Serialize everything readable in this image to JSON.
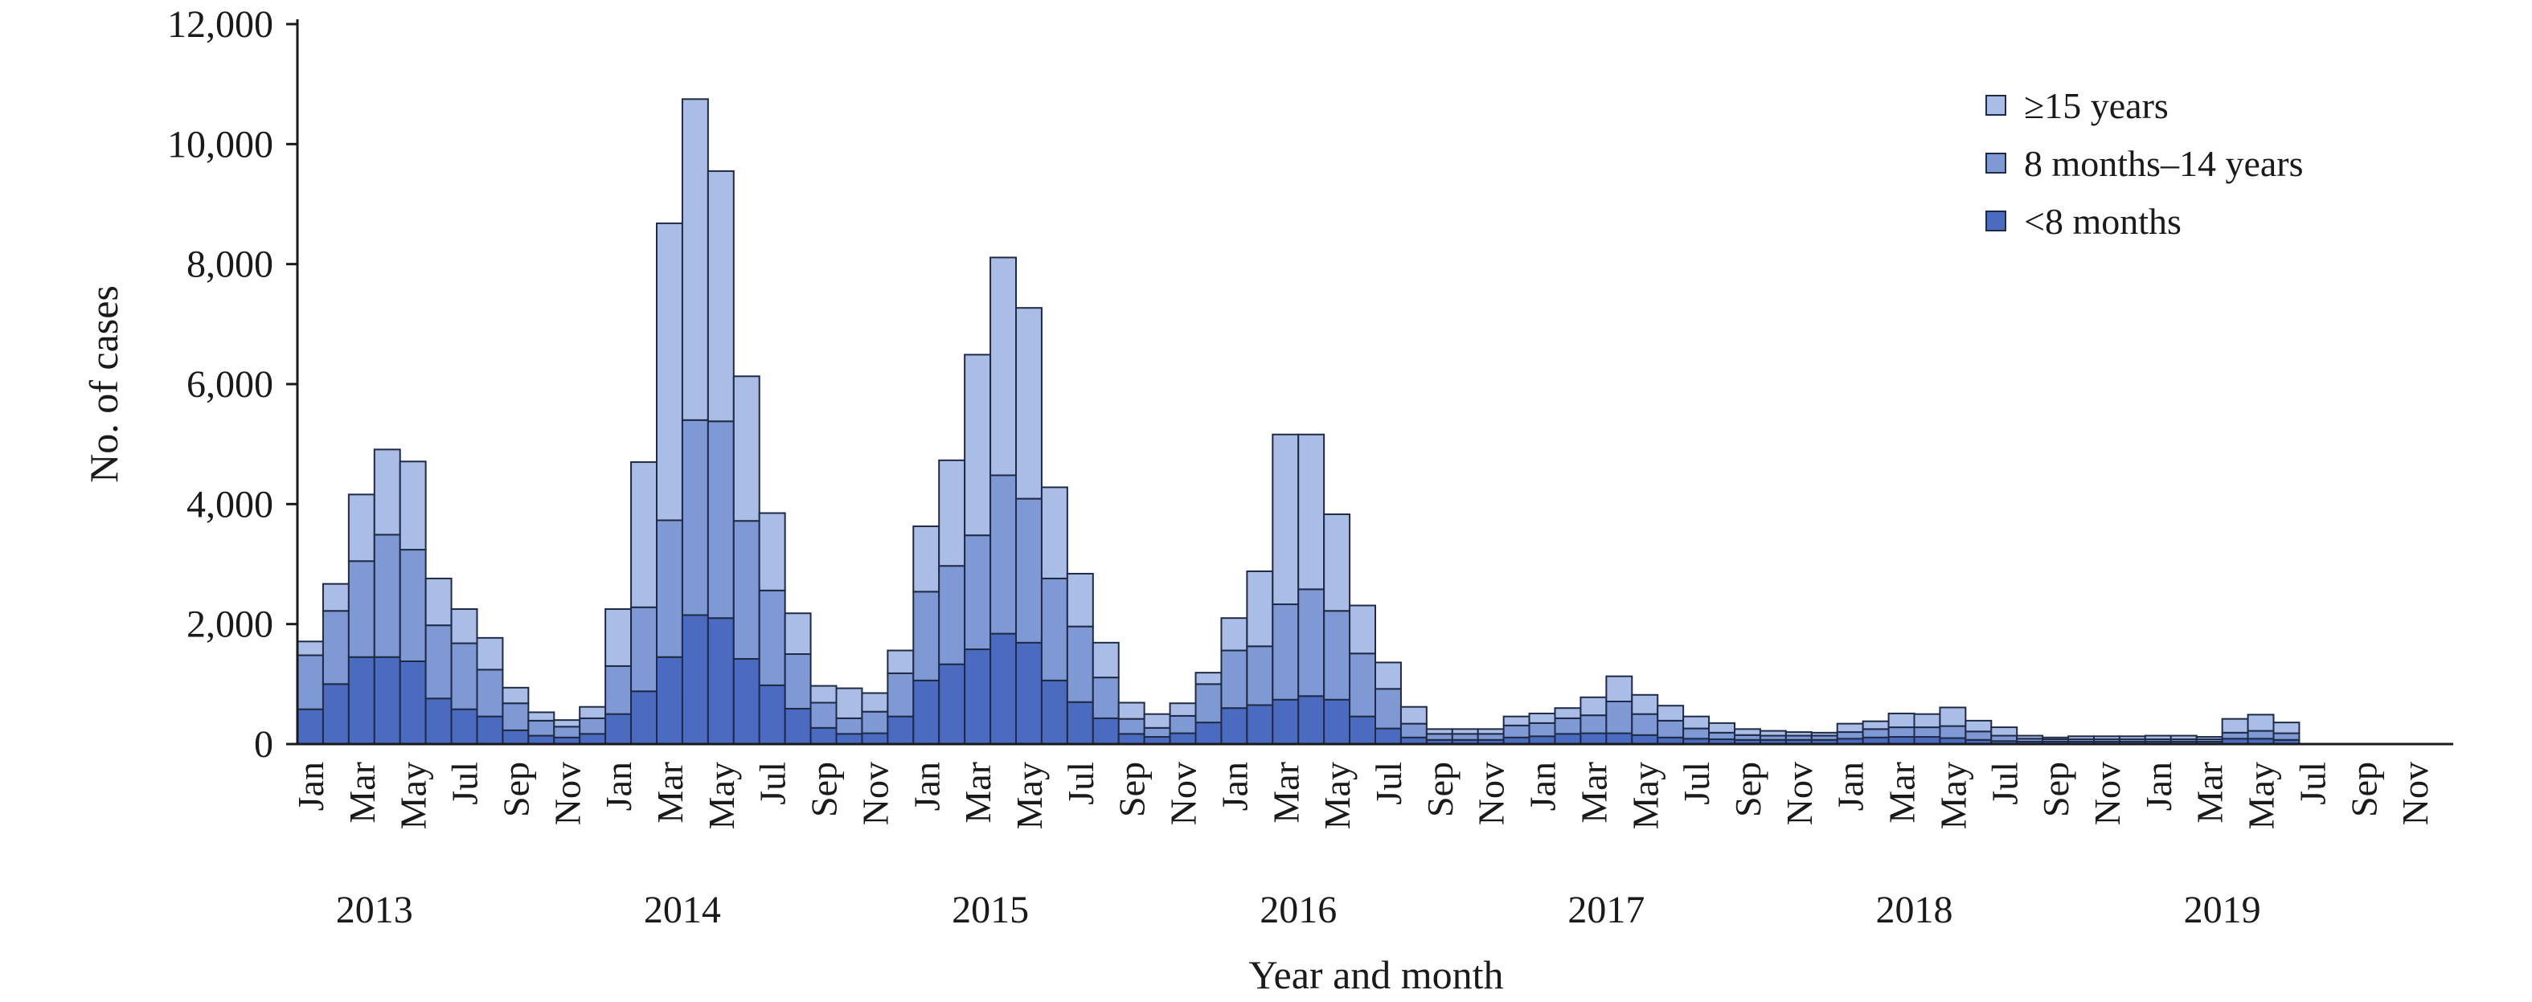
{
  "chart_data": {
    "type": "bar",
    "stacked": true,
    "title": "",
    "xlabel": "Year and month",
    "ylabel": "No. of cases",
    "ylim": [
      0,
      12000
    ],
    "yticks": [
      0,
      2000,
      4000,
      6000,
      8000,
      10000,
      12000
    ],
    "ytick_labels": [
      "0",
      "2,000",
      "4,000",
      "6,000",
      "8,000",
      "10,000",
      "12,000"
    ],
    "x_tick_labels": [
      "Jan",
      "Mar",
      "May",
      "Jul",
      "Sep",
      "Nov"
    ],
    "years": [
      "2013",
      "2014",
      "2015",
      "2016",
      "2017",
      "2018",
      "2019"
    ],
    "months_per_year": 12,
    "legend_position": "top-right",
    "colors": {
      "lt8months": "#4a6bbf",
      "mid": "#7f99d4",
      "ge15": "#aabde6",
      "edge": "#1f2a44"
    },
    "series": [
      {
        "name": "<8 months",
        "values": [
          580,
          1000,
          1450,
          1450,
          1380,
          760,
          580,
          460,
          230,
          140,
          110,
          170,
          500,
          880,
          1450,
          2150,
          2100,
          1420,
          980,
          590,
          270,
          170,
          180,
          460,
          1060,
          1330,
          1580,
          1840,
          1690,
          1060,
          700,
          430,
          170,
          120,
          180,
          360,
          600,
          650,
          740,
          800,
          740,
          460,
          260,
          110,
          70,
          70,
          70,
          110,
          130,
          170,
          180,
          180,
          150,
          110,
          90,
          80,
          70,
          70,
          70,
          70,
          90,
          110,
          120,
          120,
          100,
          70,
          50,
          40,
          40,
          40,
          40,
          40,
          40,
          40,
          40,
          90,
          90,
          70,
          0,
          0,
          0,
          0,
          0,
          0
        ]
      },
      {
        "name": "8 months–14 years",
        "values": [
          900,
          1220,
          1600,
          2040,
          1860,
          1220,
          1100,
          780,
          450,
          250,
          180,
          260,
          800,
          1400,
          2280,
          3250,
          3280,
          2300,
          1580,
          910,
          420,
          260,
          360,
          720,
          1480,
          1640,
          1900,
          2640,
          2400,
          1700,
          1260,
          680,
          250,
          150,
          290,
          640,
          960,
          980,
          1590,
          1780,
          1480,
          1050,
          660,
          230,
          100,
          100,
          100,
          200,
          220,
          260,
          300,
          530,
          350,
          280,
          170,
          110,
          80,
          70,
          70,
          70,
          110,
          140,
          160,
          160,
          200,
          140,
          90,
          50,
          40,
          40,
          40,
          40,
          40,
          40,
          40,
          100,
          130,
          110,
          0,
          0,
          0,
          0,
          0,
          0
        ]
      },
      {
        "name": "≥15 years",
        "values": [
          230,
          450,
          1110,
          1420,
          1470,
          780,
          570,
          530,
          260,
          140,
          110,
          190,
          950,
          2420,
          4950,
          5350,
          4170,
          2410,
          1290,
          680,
          280,
          500,
          310,
          380,
          1090,
          1760,
          3010,
          3630,
          3180,
          1520,
          880,
          580,
          270,
          230,
          210,
          190,
          540,
          1250,
          2830,
          2580,
          1610,
          800,
          440,
          280,
          80,
          80,
          80,
          150,
          160,
          170,
          300,
          420,
          320,
          250,
          200,
          160,
          100,
          80,
          60,
          50,
          140,
          130,
          230,
          220,
          310,
          180,
          140,
          50,
          30,
          50,
          50,
          50,
          60,
          60,
          40,
          230,
          270,
          180,
          0,
          0,
          0,
          0,
          0,
          0
        ]
      }
    ]
  }
}
